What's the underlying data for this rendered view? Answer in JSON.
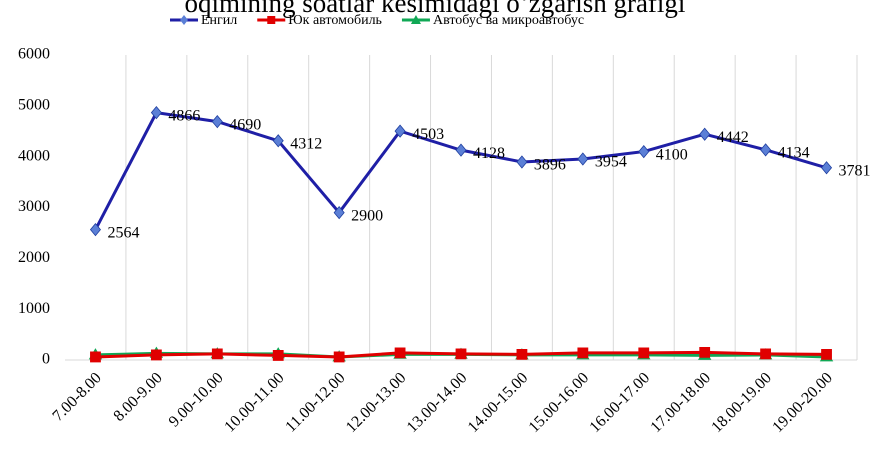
{
  "chart_data": {
    "type": "line",
    "title": "oqimining soatlar kesimidagi o‘zgarish grafigi",
    "categories": [
      "7.00-8.00",
      "8.00-9.00",
      "9.00-10.00",
      "10.00-11.00",
      "11.00-12.00",
      "12.00-13.00",
      "13.00-14.00",
      "14.00-15.00",
      "15.00-16.00",
      "16.00-17.00",
      "17.00-18.00",
      "18.00-19.00",
      "19.00-20.00"
    ],
    "series": [
      {
        "name": "Енгил",
        "color": "#1f1fa6",
        "marker_color": "#5b7fd6",
        "marker": "diamond",
        "data_labels": true,
        "values": [
          2564,
          4866,
          4690,
          4312,
          2900,
          4503,
          4128,
          3896,
          3954,
          4100,
          4442,
          4134,
          3781
        ]
      },
      {
        "name": "Юк автомобиль",
        "color": "#e00000",
        "marker_color": "#e00000",
        "marker": "square",
        "data_labels": false,
        "values": [
          60,
          100,
          120,
          90,
          60,
          140,
          120,
          110,
          140,
          140,
          150,
          120,
          110
        ]
      },
      {
        "name": "Автобус ва микроавтобус",
        "color": "#10a855",
        "marker_color": "#10a855",
        "marker": "triangle",
        "data_labels": false,
        "values": [
          100,
          130,
          120,
          120,
          60,
          110,
          110,
          100,
          100,
          100,
          90,
          100,
          60
        ]
      }
    ],
    "ylim": [
      0,
      6000
    ],
    "yticks": [
      0,
      1000,
      2000,
      3000,
      4000,
      5000,
      6000
    ],
    "grid": "vertical",
    "legend": "top"
  }
}
